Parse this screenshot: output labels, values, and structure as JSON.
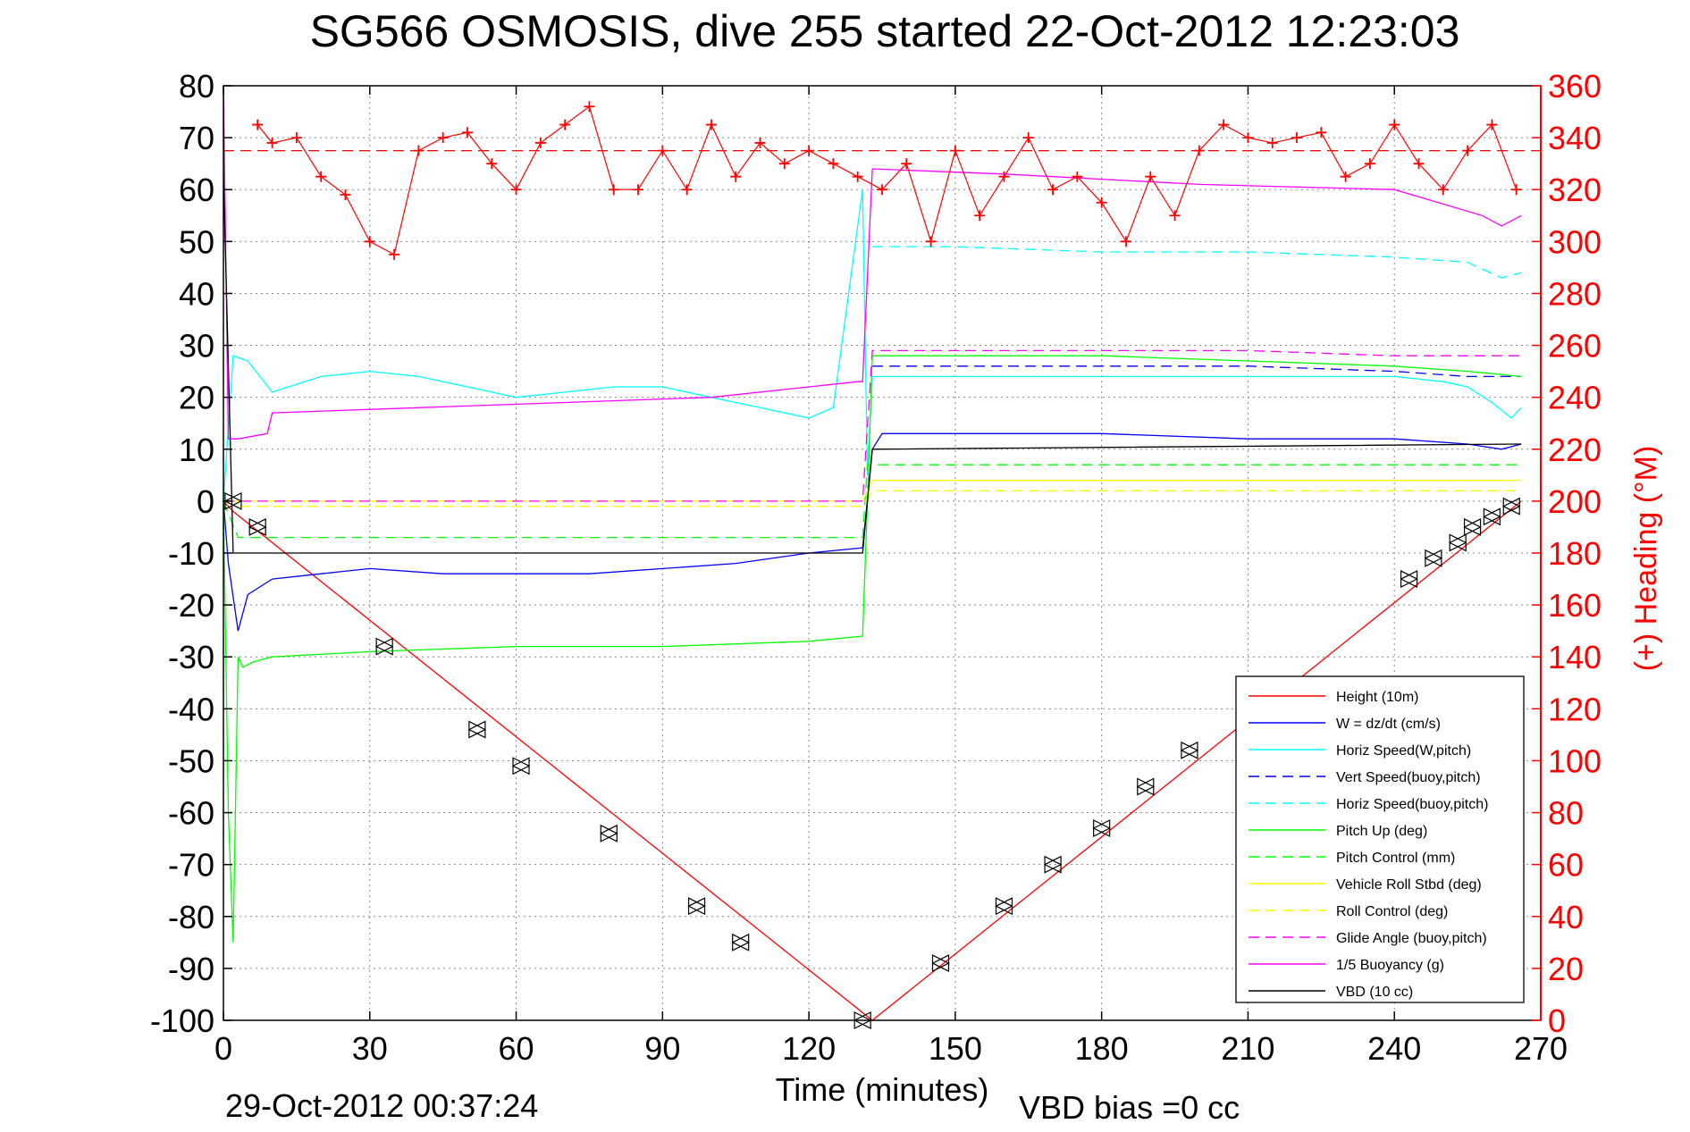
{
  "chart_data": {
    "type": "line",
    "title": "SG566 OSMOSIS, dive 255 started 22-Oct-2012 12:23:03",
    "xlabel": "Time (minutes)",
    "ylabel_right": "(+) Heading (°M)",
    "footer_left": "29-Oct-2012 00:37:24",
    "footer_right": "VBD bias =0 cc",
    "xlim": [
      0,
      270
    ],
    "ylim": [
      -100,
      80
    ],
    "y2lim": [
      0,
      360
    ],
    "xticks": [
      0,
      30,
      60,
      90,
      120,
      150,
      180,
      210,
      240,
      270
    ],
    "yticks": [
      80,
      70,
      60,
      50,
      40,
      30,
      20,
      10,
      0,
      -10,
      -20,
      -30,
      -40,
      -50,
      -60,
      -70,
      -80,
      -90,
      -100
    ],
    "y2ticks": [
      360,
      340,
      320,
      300,
      280,
      260,
      240,
      220,
      200,
      180,
      160,
      140,
      120,
      100,
      80,
      60,
      40,
      20,
      0
    ],
    "grid": true,
    "legend_position": "bottom-right",
    "colors": {
      "height": "#ff0000",
      "w": "#0000ff",
      "horiz_speed": "#00ffff",
      "pitch": "#00ff00",
      "roll": "#ffff00",
      "glide": "#ff00ff",
      "buoyancy": "#ff00ff",
      "vbd": "#000000",
      "heading": "#ff0000",
      "right_axis": "#ff0000"
    },
    "series": [
      {
        "name": "Height (10m)",
        "color": "#ff0000",
        "dash": false,
        "x": [
          0,
          2,
          133,
          266
        ],
        "y": [
          0,
          -2,
          -100,
          0
        ]
      },
      {
        "name": "W = dz/dt (cm/s)",
        "color": "#0000ff",
        "dash": false,
        "x": [
          0,
          1,
          3,
          5,
          10,
          20,
          30,
          45,
          60,
          75,
          90,
          105,
          120,
          131,
          133,
          135,
          150,
          180,
          210,
          240,
          255,
          262,
          266
        ],
        "y": [
          0,
          -12,
          -25,
          -18,
          -15,
          -14,
          -13,
          -14,
          -14,
          -14,
          -13,
          -12,
          -10,
          -9,
          10,
          13,
          13,
          13,
          12,
          12,
          11,
          10,
          11
        ]
      },
      {
        "name": "Horiz Speed(W,pitch)",
        "color": "#00ffff",
        "dash": false,
        "x": [
          0,
          2,
          5,
          10,
          20,
          30,
          40,
          50,
          60,
          70,
          80,
          90,
          100,
          110,
          120,
          125,
          131,
          132,
          133,
          135,
          150,
          180,
          210,
          240,
          250,
          255,
          260,
          264,
          266
        ],
        "y": [
          0,
          28,
          27,
          21,
          24,
          25,
          24,
          22,
          20,
          21,
          22,
          22,
          20,
          18,
          16,
          18,
          60,
          5,
          24,
          24,
          24,
          24,
          24,
          24,
          23,
          22,
          19,
          16,
          18
        ]
      },
      {
        "name": "Vert Speed(buoy,pitch)",
        "color": "#0000ff",
        "dash": true,
        "x": [
          133,
          150,
          180,
          210,
          240,
          255,
          266
        ],
        "y": [
          26,
          26,
          26,
          26,
          25,
          24,
          24
        ]
      },
      {
        "name": "Horiz Speed(buoy,pitch)",
        "color": "#00ffff",
        "dash": true,
        "x": [
          133,
          150,
          180,
          210,
          240,
          255,
          262,
          266
        ],
        "y": [
          49,
          49,
          48,
          48,
          47,
          46,
          43,
          44
        ]
      },
      {
        "name": "Pitch Up (deg)",
        "color": "#00ff00",
        "dash": false,
        "x": [
          0,
          1,
          2,
          3,
          4,
          6,
          10,
          30,
          60,
          90,
          120,
          131,
          132,
          133,
          150,
          180,
          210,
          240,
          255,
          266
        ],
        "y": [
          0,
          -60,
          -85,
          -30,
          -32,
          -31,
          -30,
          -29,
          -28,
          -28,
          -27,
          -26,
          0,
          28,
          28,
          28,
          27,
          26,
          25,
          24
        ]
      },
      {
        "name": "Pitch Control (mm)",
        "color": "#00ff00",
        "dash": true,
        "x": [
          0,
          3,
          131,
          132,
          266
        ],
        "y": [
          0,
          -7,
          -7,
          7,
          7
        ]
      },
      {
        "name": "Vehicle Roll Stbd (deg)",
        "color": "#ffff00",
        "dash": false,
        "x": [
          0,
          3,
          131,
          133,
          266
        ],
        "y": [
          0,
          0,
          0,
          4,
          4
        ]
      },
      {
        "name": "Roll Control (deg)",
        "color": "#ffff00",
        "dash": true,
        "x": [
          0,
          3,
          131,
          133,
          266
        ],
        "y": [
          0,
          -1,
          -1,
          2,
          2
        ]
      },
      {
        "name": "Glide Angle (buoy,pitch)",
        "color": "#ff00ff",
        "dash": true,
        "x": [
          0,
          131,
          133,
          150,
          180,
          210,
          240,
          266
        ],
        "y": [
          0,
          0,
          29,
          29,
          29,
          29,
          28,
          28
        ]
      },
      {
        "name": "1/5 Buoyancy (g)",
        "color": "#ff00ff",
        "dash": false,
        "x": [
          0,
          1,
          3,
          9,
          10,
          40,
          70,
          100,
          130,
          131,
          133,
          160,
          200,
          240,
          258,
          262,
          266
        ],
        "y": [
          80,
          12,
          12,
          13,
          17,
          18,
          19,
          20,
          23,
          23,
          64,
          63,
          61,
          60,
          55,
          53,
          55
        ]
      },
      {
        "name": "VBD (10 cc)",
        "color": "#000000",
        "dash": false,
        "x": [
          0,
          2,
          131,
          133,
          266
        ],
        "y": [
          63,
          -10,
          -10,
          10,
          11
        ]
      }
    ],
    "heading": {
      "name": "(+) Heading",
      "color": "#ff0000",
      "reference": 335,
      "x": [
        7,
        10,
        15,
        20,
        25,
        30,
        35,
        40,
        45,
        50,
        55,
        60,
        65,
        70,
        75,
        80,
        85,
        90,
        95,
        100,
        105,
        110,
        115,
        120,
        125,
        130,
        135,
        140,
        145,
        150,
        155,
        160,
        165,
        170,
        175,
        180,
        185,
        190,
        195,
        200,
        205,
        210,
        215,
        220,
        225,
        230,
        235,
        240,
        245,
        250,
        255,
        260,
        265
      ],
      "y": [
        345,
        338,
        340,
        325,
        318,
        300,
        295,
        335,
        340,
        342,
        330,
        320,
        338,
        345,
        352,
        320,
        320,
        335,
        320,
        345,
        325,
        338,
        330,
        335,
        330,
        325,
        320,
        330,
        300,
        335,
        310,
        325,
        340,
        320,
        325,
        315,
        300,
        325,
        310,
        335,
        345,
        340,
        338,
        340,
        342,
        325,
        330,
        345,
        330,
        320,
        335,
        345,
        320
      ]
    },
    "markers": {
      "x": [
        2,
        7,
        33,
        52,
        61,
        79,
        97,
        106,
        131,
        147,
        160,
        170,
        180,
        189,
        198,
        243,
        248,
        253,
        256,
        260,
        264
      ],
      "y": [
        0,
        -5,
        -28,
        -44,
        -51,
        -64,
        -78,
        -85,
        -100,
        -89,
        -78,
        -70,
        -63,
        -55,
        -48,
        -15,
        -11,
        -8,
        -5,
        -3,
        -1
      ]
    }
  }
}
